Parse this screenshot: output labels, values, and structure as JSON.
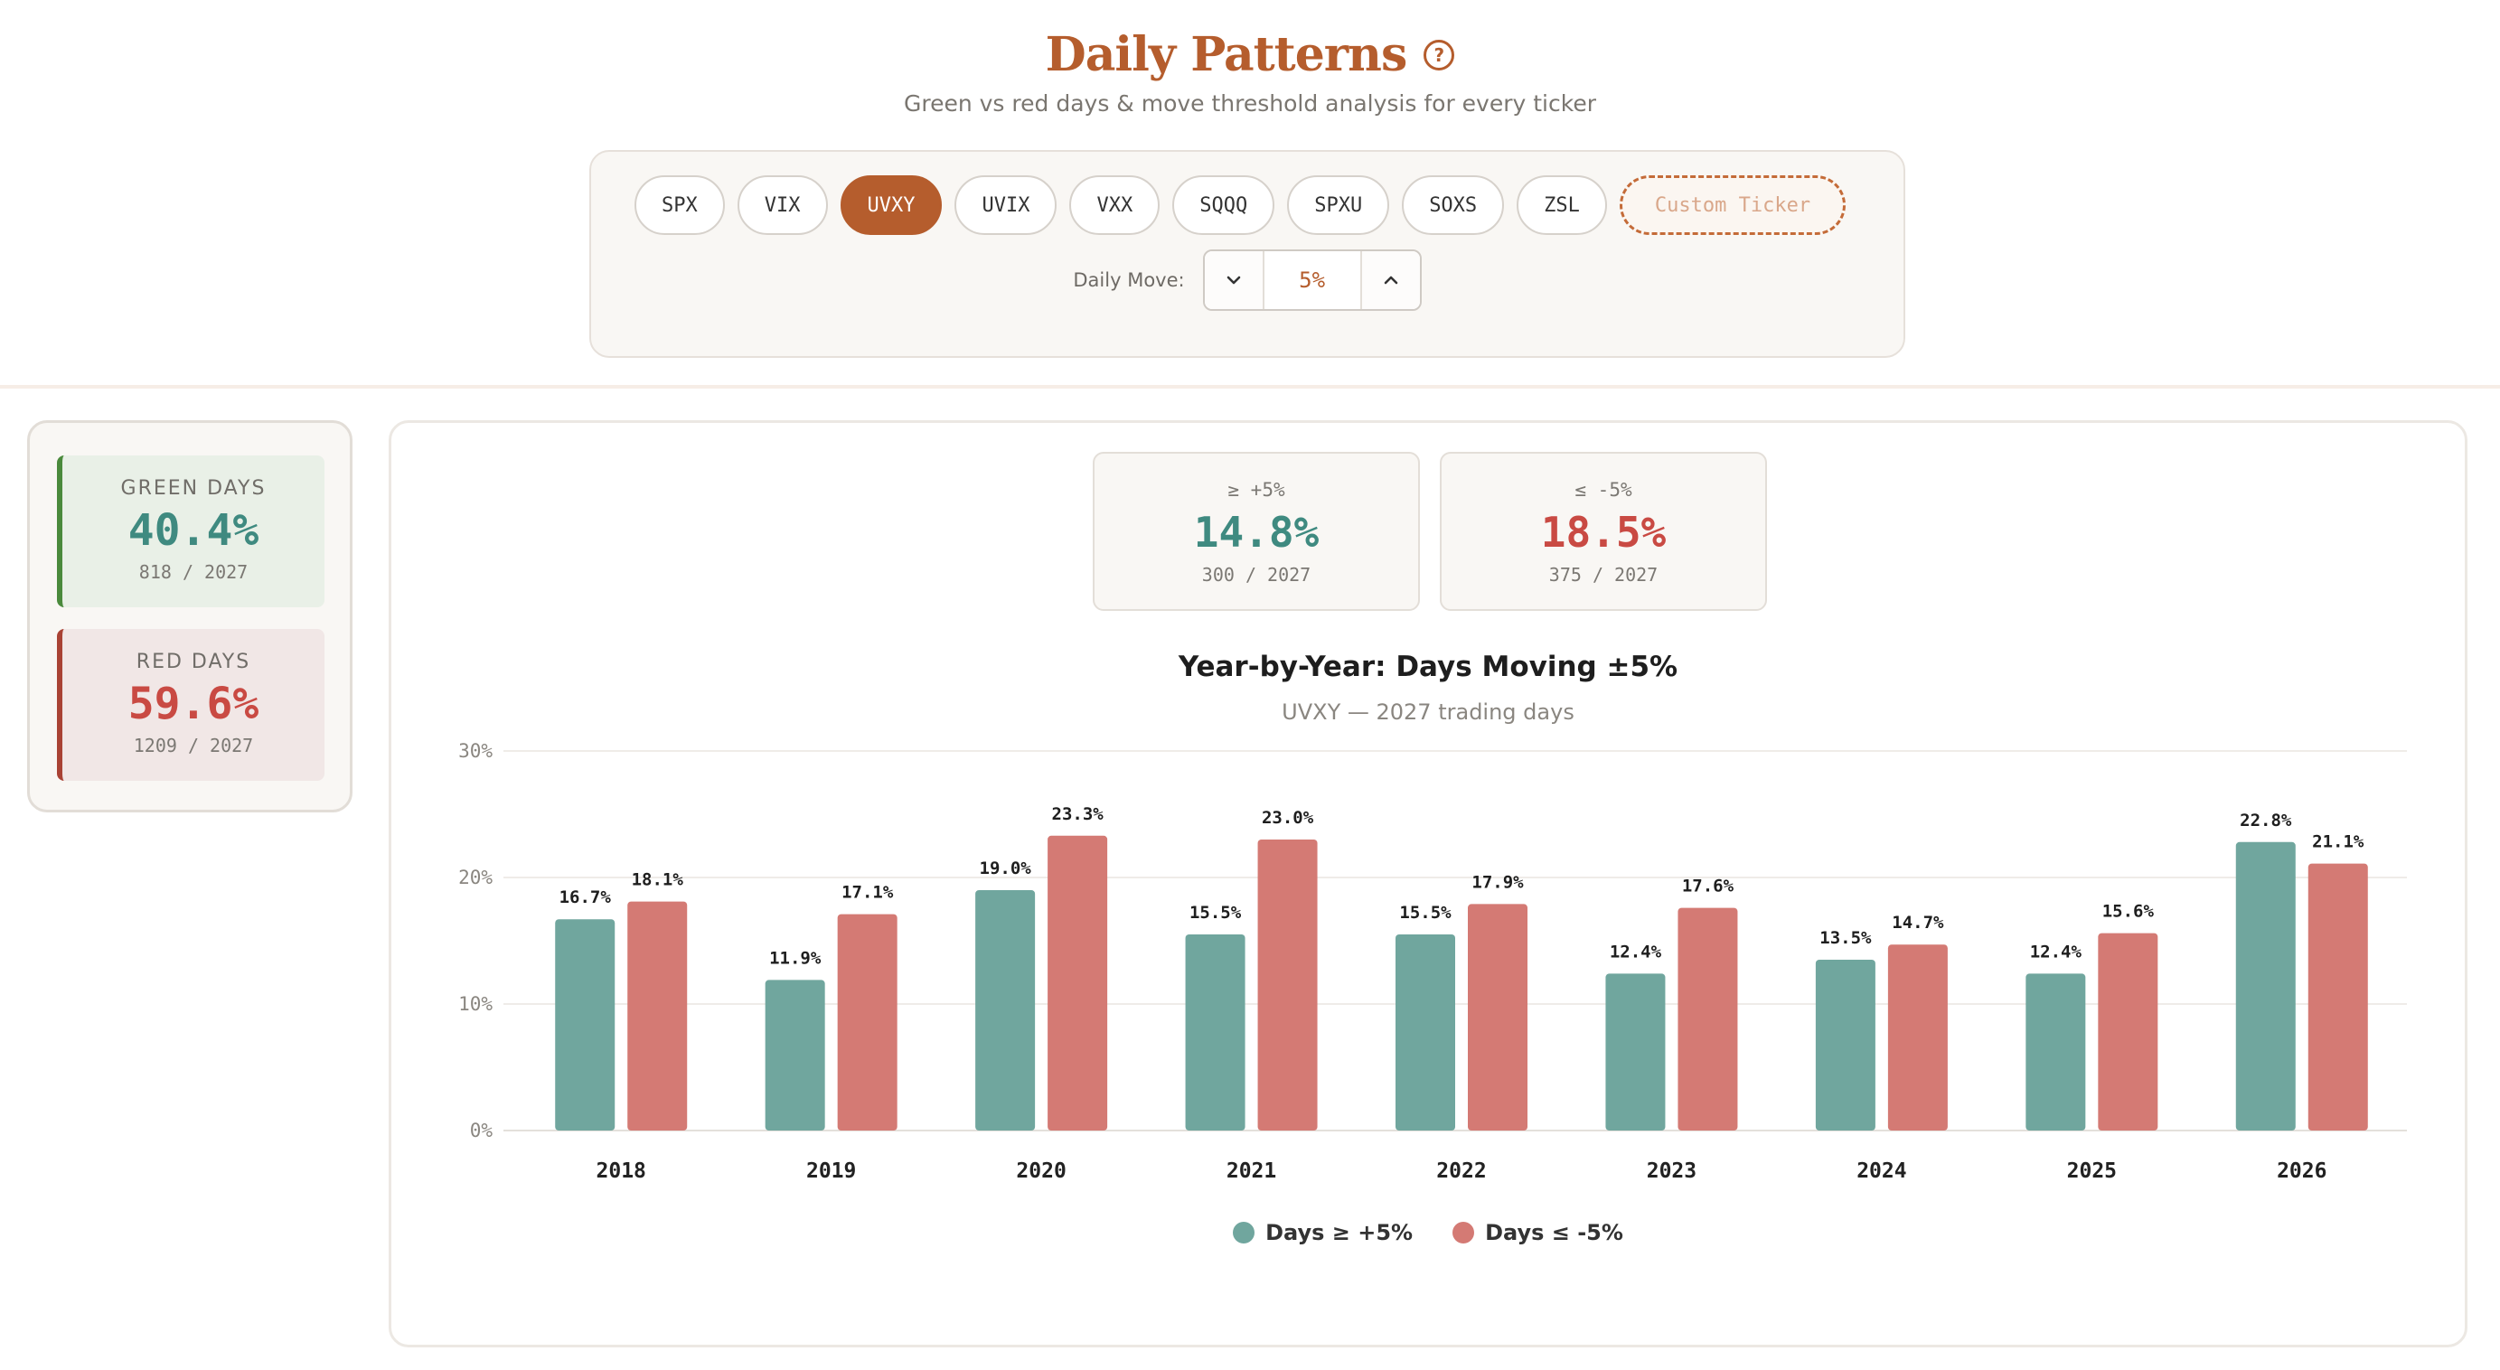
{
  "header": {
    "title": "Daily Patterns",
    "help_icon": "?",
    "subtitle": "Green vs red days & move threshold analysis for every ticker"
  },
  "tickers": [
    {
      "label": "SPX",
      "active": false
    },
    {
      "label": "VIX",
      "active": false
    },
    {
      "label": "UVXY",
      "active": true
    },
    {
      "label": "UVIX",
      "active": false
    },
    {
      "label": "VXX",
      "active": false
    },
    {
      "label": "SQQQ",
      "active": false
    },
    {
      "label": "SPXU",
      "active": false
    },
    {
      "label": "SOXS",
      "active": false
    },
    {
      "label": "ZSL",
      "active": false
    }
  ],
  "custom_ticker_label": "Custom Ticker",
  "daily_move": {
    "label": "Daily Move:",
    "value": "5%"
  },
  "stats": {
    "green": {
      "label": "GREEN DAYS",
      "value": "40.4%",
      "sub": "818 / 2027"
    },
    "red": {
      "label": "RED DAYS",
      "value": "59.6%",
      "sub": "1209 / 2027"
    }
  },
  "thresholds": {
    "up": {
      "label": "≥ +5%",
      "value": "14.8%",
      "sub": "300 / 2027"
    },
    "down": {
      "label": "≤ -5%",
      "value": "18.5%",
      "sub": "375 / 2027"
    }
  },
  "colors": {
    "accent": "#b55d2d",
    "up_bar": "#70a69e",
    "down_bar": "#d47a74"
  },
  "chart_data": {
    "type": "bar",
    "title": "Year-by-Year: Days Moving ±5%",
    "subtitle": "UVXY — 2027 trading days",
    "categories": [
      "2018",
      "2019",
      "2020",
      "2021",
      "2022",
      "2023",
      "2024",
      "2025",
      "2026"
    ],
    "series": [
      {
        "name": "Days ≥ +5%",
        "values": [
          16.7,
          11.9,
          19.0,
          15.5,
          15.5,
          12.4,
          13.5,
          12.4,
          22.8
        ],
        "labels": [
          "16.7%",
          "11.9%",
          "19.0%",
          "15.5%",
          "15.5%",
          "12.4%",
          "13.5%",
          "12.4%",
          "22.8%"
        ]
      },
      {
        "name": "Days ≤ -5%",
        "values": [
          18.1,
          17.1,
          23.3,
          23.0,
          17.9,
          17.6,
          14.7,
          15.6,
          21.1
        ],
        "labels": [
          "18.1%",
          "17.1%",
          "23.3%",
          "23.0%",
          "17.9%",
          "17.6%",
          "14.7%",
          "15.6%",
          "21.1%"
        ]
      }
    ],
    "yticks": [
      "0%",
      "10%",
      "20%",
      "30%"
    ],
    "ylim": [
      0,
      30
    ],
    "grid": true,
    "legend_position": "bottom-center"
  }
}
